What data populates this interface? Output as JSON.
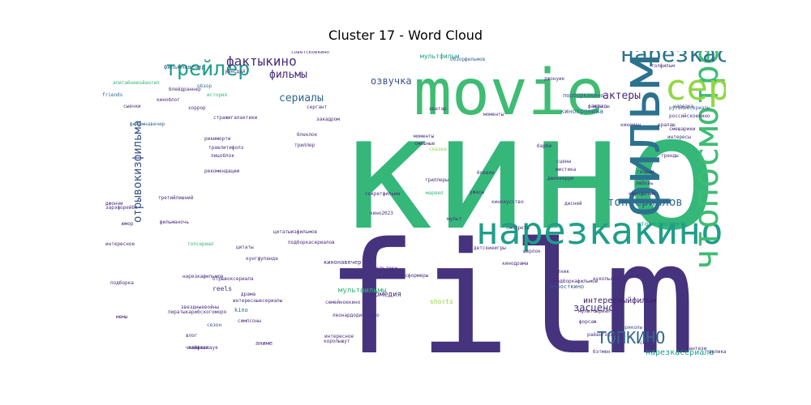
{
  "chart_data": {
    "type": "wordcloud",
    "title": "Cluster 17 - Word Cloud",
    "colors": {
      "dark_purple": "#472d7b",
      "purple": "#46337e",
      "deep_purple": "#3e1f6b",
      "teal": "#2c728e",
      "blue": "#31688e",
      "green": "#35b779",
      "green2": "#3fbc73",
      "lime": "#90d743",
      "yellow": "#d8e219",
      "cyan": "#1f9e89",
      "navy": "#3b528b"
    },
    "words": [
      {
        "text": "кино",
        "size": 195,
        "color": "#35b779",
        "rotate": 0
      },
      {
        "text": "film",
        "size": 190,
        "color": "#46337e",
        "rotate": 0
      },
      {
        "text": "movie",
        "size": 78,
        "color": "#3fbc73",
        "rotate": 0
      },
      {
        "text": "фильм",
        "size": 66,
        "color": "#2c728e",
        "rotate": 270
      },
      {
        "text": "нарезкакино",
        "size": 46,
        "color": "#1f9e89",
        "rotate": 0
      },
      {
        "text": "чтопосмотреть",
        "size": 42,
        "color": "#3fbc73",
        "rotate": 270
      },
      {
        "text": "сериал",
        "size": 44,
        "color": "#90d743",
        "rotate": 0
      },
      {
        "text": "нарезкасериалов",
        "size": 28,
        "color": "#2c728e",
        "rotate": 0
      },
      {
        "text": "трейлер",
        "size": 25,
        "color": "#1f9e89",
        "rotate": 0
      },
      {
        "text": "фактыкино",
        "size": 16,
        "color": "#472d7b",
        "rotate": 0
      },
      {
        "text": "ТОПКИНО",
        "size": 20,
        "color": "#31688e",
        "rotate": 0
      },
      {
        "text": "отрывокизфильма",
        "size": 14,
        "color": "#3b528b",
        "rotate": 270
      },
      {
        "text": "топсериалов",
        "size": 14,
        "color": "#31688e",
        "rotate": 0
      },
      {
        "text": "фильмы",
        "size": 13,
        "color": "#472d7b",
        "rotate": 0
      },
      {
        "text": "сериалы",
        "size": 13,
        "color": "#31688e",
        "rotate": 0
      },
      {
        "text": "актеры",
        "size": 13,
        "color": "#472d7b",
        "rotate": 0
      },
      {
        "text": "озвучка",
        "size": 12,
        "color": "#3b528b",
        "rotate": 0
      },
      {
        "text": "засценой",
        "size": 12,
        "color": "#472d7b",
        "rotate": 0
      },
      {
        "text": "интересныйфильм",
        "size": 10,
        "color": "#3e1f6b",
        "rotate": 0
      },
      {
        "text": "нарезкасериала",
        "size": 10,
        "color": "#1f9e89",
        "rotate": 0
      },
      {
        "text": "мультфильмы",
        "size": 9,
        "color": "#35b779",
        "rotate": 0
      },
      {
        "text": "комедия",
        "size": 9,
        "color": "#472d7b",
        "rotate": 0
      },
      {
        "text": "кинохроника",
        "size": 8,
        "color": "#31688e",
        "rotate": 0
      },
      {
        "text": "мультфильм",
        "size": 8,
        "color": "#1f9e89",
        "rotate": 0
      },
      {
        "text": "чтопосмотреть",
        "size": 8,
        "color": "#1f9e89",
        "rotate": 0
      },
      {
        "text": "фильмнавечер",
        "size": 7,
        "color": "#31688e",
        "rotate": 0
      },
      {
        "text": "подборкакино",
        "size": 7,
        "color": "#3b528b",
        "rotate": 0
      },
      {
        "text": "кинонавечер",
        "size": 7,
        "color": "#472d7b",
        "rotate": 0
      },
      {
        "text": "новосткино",
        "size": 7,
        "color": "#3b528b",
        "rotate": 0
      },
      {
        "text": "shorts",
        "size": 8,
        "color": "#90d743",
        "rotate": 0
      },
      {
        "text": "reels",
        "size": 8,
        "color": "#46337e",
        "rotate": 0
      },
      {
        "text": "kino",
        "size": 7,
        "color": "#31688e",
        "rotate": 0
      },
      {
        "text": "аниме",
        "size": 7,
        "color": "#472d7b",
        "rotate": 0
      },
      {
        "text": "сезон",
        "size": 6,
        "color": "#3b528b",
        "rotate": 0
      },
      {
        "text": "лайфхак",
        "size": 6,
        "color": "#472d7b",
        "rotate": 0
      },
      {
        "text": "симпсоны",
        "size": 6,
        "color": "#472d7b",
        "rotate": 0
      },
      {
        "text": "приколы",
        "size": 6,
        "color": "#3b528b",
        "rotate": 0
      },
      {
        "text": "юмор",
        "size": 6,
        "color": "#472d7b",
        "rotate": 0
      },
      {
        "text": "хоррор",
        "size": 6,
        "color": "#472d7b",
        "rotate": 0
      },
      {
        "text": "обзор",
        "size": 6,
        "color": "#31688e",
        "rotate": 0
      },
      {
        "text": "история",
        "size": 6,
        "color": "#35b779",
        "rotate": 0
      },
      {
        "text": "friends",
        "size": 6,
        "color": "#31688e",
        "rotate": 0
      },
      {
        "text": "киноблог",
        "size": 6,
        "color": "#472d7b",
        "rotate": 0
      },
      {
        "text": "сыечки",
        "size": 6,
        "color": "#472d7b",
        "rotate": 0
      },
      {
        "text": "фильмнавечер",
        "size": 6,
        "color": "#31688e",
        "rotate": 0
      },
      {
        "text": "алитабоевойантел",
        "size": 6,
        "color": "#35b779",
        "rotate": 0
      },
      {
        "text": "советскоекино",
        "size": 6,
        "color": "#472d7b",
        "rotate": 0
      },
      {
        "text": "обзорфильмов",
        "size": 6,
        "color": "#31688e",
        "rotate": 0
      },
      {
        "text": "сергант",
        "size": 6,
        "color": "#472d7b",
        "rotate": 0
      },
      {
        "text": "аватар",
        "size": 6,
        "color": "#472d7b",
        "rotate": 0
      },
      {
        "text": "закадром",
        "size": 6,
        "color": "#472d7b",
        "rotate": 0
      },
      {
        "text": "сказка",
        "size": 6,
        "color": "#90d743",
        "rotate": 0
      },
      {
        "text": "триллер",
        "size": 6,
        "color": "#472d7b",
        "rotate": 0
      },
      {
        "text": "блеклок",
        "size": 6,
        "color": "#472d7b",
        "rotate": 0
      },
      {
        "text": "моменты",
        "size": 6,
        "color": "#472d7b",
        "rotate": 0
      },
      {
        "text": "факты",
        "size": 6,
        "color": "#472d7b",
        "rotate": 0
      },
      {
        "text": "нарезка",
        "size": 6,
        "color": "#472d7b",
        "rotate": 0
      },
      {
        "text": "российскоекино",
        "size": 6,
        "color": "#472d7b",
        "rotate": 0
      },
      {
        "text": "русскиесериалы",
        "size": 6,
        "color": "#31688e",
        "rotate": 0
      },
      {
        "text": "киноман",
        "size": 6,
        "color": "#472d7b",
        "rotate": 0
      },
      {
        "text": "смешарики",
        "size": 6,
        "color": "#472d7b",
        "rotate": 0
      },
      {
        "text": "интересы",
        "size": 6,
        "color": "#472d7b",
        "rotate": 0
      },
      {
        "text": "тренды",
        "size": 6,
        "color": "#472d7b",
        "rotate": 0
      },
      {
        "text": "теории",
        "size": 6,
        "color": "#472d7b",
        "rotate": 0
      },
      {
        "text": "любовь",
        "size": 6,
        "color": "#472d7b",
        "rotate": 0
      },
      {
        "text": "кинофильм",
        "size": 6,
        "color": "#472d7b",
        "rotate": 0
      },
      {
        "text": "сцены",
        "size": 6,
        "color": "#472d7b",
        "rotate": 0
      },
      {
        "text": "мистика",
        "size": 6,
        "color": "#472d7b",
        "rotate": 0
      },
      {
        "text": "джиккерри",
        "size": 6,
        "color": "#472d7b",
        "rotate": 0
      },
      {
        "text": "дисней",
        "size": 6,
        "color": "#472d7b",
        "rotate": 0
      },
      {
        "text": "барби",
        "size": 6,
        "color": "#472d7b",
        "rotate": 0
      },
      {
        "text": "триллеры",
        "size": 6,
        "color": "#472d7b",
        "rotate": 0
      },
      {
        "text": "марвел",
        "size": 6,
        "color": "#35b779",
        "rotate": 0
      },
      {
        "text": "секретфильма",
        "size": 6,
        "color": "#472d7b",
        "rotate": 0
      },
      {
        "text": "кино2023",
        "size": 6,
        "color": "#472d7b",
        "rotate": 0
      },
      {
        "text": "лицоблок",
        "size": 6,
        "color": "#472d7b",
        "rotate": 0
      },
      {
        "text": "рекомендации",
        "size": 6,
        "color": "#472d7b",
        "rotate": 0
      },
      {
        "text": "травлитифолз",
        "size": 6,
        "color": "#472d7b",
        "rotate": 0
      },
      {
        "text": "рикиморти",
        "size": 6,
        "color": "#472d7b",
        "rotate": 0
      },
      {
        "text": "стражигалактики",
        "size": 6,
        "color": "#472d7b",
        "rotate": 0
      },
      {
        "text": "блейдраннер",
        "size": 6,
        "color": "#472d7b",
        "rotate": 0
      },
      {
        "text": "зарэфорейбе",
        "size": 6,
        "color": "#472d7b",
        "rotate": 0
      },
      {
        "text": "третийлишний",
        "size": 6,
        "color": "#472d7b",
        "rotate": 0
      },
      {
        "text": "интересное",
        "size": 6,
        "color": "#472d7b",
        "rotate": 0
      },
      {
        "text": "фильманочь",
        "size": 6,
        "color": "#472d7b",
        "rotate": 0
      },
      {
        "text": "топсериал",
        "size": 6,
        "color": "#35b779",
        "rotate": 0
      },
      {
        "text": "цитаты",
        "size": 6,
        "color": "#472d7b",
        "rotate": 0
      },
      {
        "text": "кунгфупанда",
        "size": 6,
        "color": "#472d7b",
        "rotate": 0
      },
      {
        "text": "подборкасериалов",
        "size": 6,
        "color": "#472d7b",
        "rotate": 0
      },
      {
        "text": "цитатыизфильмов",
        "size": 6,
        "color": "#472d7b",
        "rotate": 0
      },
      {
        "text": "нарезкафильмов",
        "size": 6,
        "color": "#472d7b",
        "rotate": 0
      },
      {
        "text": "отрывоксериала",
        "size": 6,
        "color": "#472d7b",
        "rotate": 0
      },
      {
        "text": "интересныесериалы",
        "size": 6,
        "color": "#472d7b",
        "rotate": 0
      },
      {
        "text": "драма",
        "size": 6,
        "color": "#472d7b",
        "rotate": 0
      },
      {
        "text": "влог",
        "size": 6,
        "color": "#472d7b",
        "rotate": 0
      },
      {
        "text": "человекпаук",
        "size": 6,
        "color": "#472d7b",
        "rotate": 0
      },
      {
        "text": "пиратыкарибскогоморя",
        "size": 6,
        "color": "#472d7b",
        "rotate": 0
      },
      {
        "text": "звездныевойны",
        "size": 6,
        "color": "#472d7b",
        "rotate": 0
      },
      {
        "text": "мультики",
        "size": 6,
        "color": "#472d7b",
        "rotate": 0
      },
      {
        "text": "трансформеры",
        "size": 6,
        "color": "#472d7b",
        "rotate": 0
      },
      {
        "text": "участник",
        "size": 6,
        "color": "#472d7b",
        "rotate": 0
      },
      {
        "text": "подборкафильмов",
        "size": 6,
        "color": "#472d7b",
        "rotate": 0
      },
      {
        "text": "семейноекино",
        "size": 6,
        "color": "#472d7b",
        "rotate": 0
      },
      {
        "text": "леонардодикаприо",
        "size": 6,
        "color": "#472d7b",
        "rotate": 0
      },
      {
        "text": "королышут",
        "size": 6,
        "color": "#472d7b",
        "rotate": 0
      },
      {
        "text": "интересное",
        "size": 6,
        "color": "#472d7b",
        "rotate": 0
      },
      {
        "text": "мультсериал",
        "size": 6,
        "color": "#472d7b",
        "rotate": 0
      },
      {
        "text": "бэтмен",
        "size": 6,
        "color": "#472d7b",
        "rotate": 0
      },
      {
        "text": "великаяотечественная",
        "size": 6,
        "color": "#472d7b",
        "rotate": 0
      },
      {
        "text": "фантези",
        "size": 6,
        "color": "#472d7b",
        "rotate": 0
      },
      {
        "text": "скала",
        "size": 6,
        "color": "#472d7b",
        "rotate": 0
      },
      {
        "text": "райангослинг",
        "size": 6,
        "color": "#472d7b",
        "rotate": 0
      },
      {
        "text": "форсаж",
        "size": 6,
        "color": "#472d7b",
        "rotate": 0
      },
      {
        "text": "кукольные",
        "size": 6,
        "color": "#472d7b",
        "rotate": 0
      },
      {
        "text": "прикол",
        "size": 6,
        "color": "#472d7b",
        "rotate": 0
      },
      {
        "text": "шерлок",
        "size": 6,
        "color": "#472d7b",
        "rotate": 0
      },
      {
        "text": "кинодрама",
        "size": 6,
        "color": "#472d7b",
        "rotate": 0
      },
      {
        "text": "детскиеигры",
        "size": 6,
        "color": "#472d7b",
        "rotate": 0
      },
      {
        "text": "подборка",
        "size": 6,
        "color": "#472d7b",
        "rotate": 0
      },
      {
        "text": "уэнсдэй",
        "size": 6,
        "color": "#472d7b",
        "rotate": 0
      },
      {
        "text": "джонуик",
        "size": 6,
        "color": "#472d7b",
        "rotate": 0
      },
      {
        "text": "звезды",
        "size": 6,
        "color": "#472d7b",
        "rotate": 0
      },
      {
        "text": "толфильм",
        "size": 6,
        "color": "#472d7b",
        "rotate": 0
      },
      {
        "text": "ералаш",
        "size": 6,
        "color": "#472d7b",
        "rotate": 0
      },
      {
        "text": "смешные",
        "size": 6,
        "color": "#472d7b",
        "rotate": 0
      },
      {
        "text": "моменты",
        "size": 6,
        "color": "#472d7b",
        "rotate": 0
      },
      {
        "text": "мульт",
        "size": 6,
        "color": "#472d7b",
        "rotate": 0
      },
      {
        "text": "кинокусство",
        "size": 6,
        "color": "#472d7b",
        "rotate": 0
      },
      {
        "text": "смотреть",
        "size": 6,
        "color": "#472d7b",
        "rotate": 0
      },
      {
        "text": "боевик",
        "size": 6,
        "color": "#472d7b",
        "rotate": 0
      },
      {
        "text": "джонни",
        "size": 6,
        "color": "#472d7b",
        "rotate": 0
      },
      {
        "text": "мемы",
        "size": 6,
        "color": "#472d7b",
        "rotate": 0
      },
      {
        "text": "ужасы",
        "size": 6,
        "color": "#472d7b",
        "rotate": 0
      }
    ]
  }
}
